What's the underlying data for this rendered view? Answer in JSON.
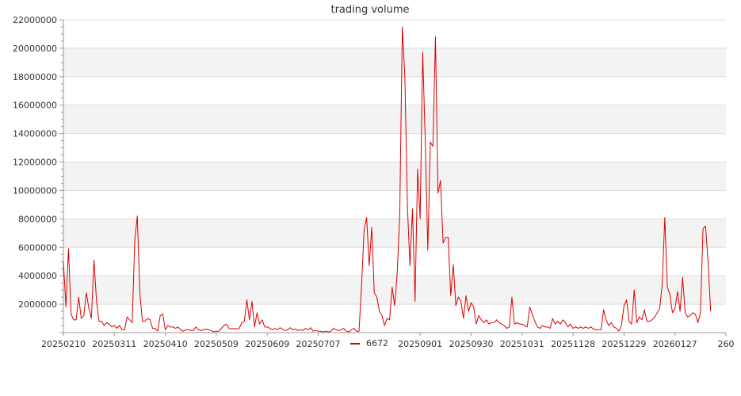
{
  "chart_data": {
    "type": "line",
    "title": "trading volume",
    "xlabel": "",
    "ylabel": "",
    "ylim": [
      0,
      22000000
    ],
    "y_ticks": [
      2000000,
      4000000,
      6000000,
      8000000,
      10000000,
      12000000,
      14000000,
      16000000,
      18000000,
      20000000,
      22000000
    ],
    "y_tick_labels": [
      "2000000",
      "4000000",
      "6000000",
      "8000000",
      "10000000",
      "12000000",
      "14000000",
      "16000000",
      "18000000",
      "20000000",
      "22000000"
    ],
    "x_tick_labels": [
      {
        "text": "20250210",
        "index": 0
      },
      {
        "text": "20250311",
        "index": 20
      },
      {
        "text": "20250410",
        "index": 40
      },
      {
        "text": "20250509",
        "index": 60
      },
      {
        "text": "20250609",
        "index": 80
      },
      {
        "text": "20250707",
        "index": 100
      },
      {
        "text": "20250901",
        "index": 140
      },
      {
        "text": "20250930",
        "index": 160
      },
      {
        "text": "20251031",
        "index": 180
      },
      {
        "text": "20251128",
        "index": 200
      },
      {
        "text": "20251229",
        "index": 220
      },
      {
        "text": "20260127",
        "index": 240
      },
      {
        "text": "260",
        "index": 260
      }
    ],
    "x_range": [
      0,
      260
    ],
    "grid": true,
    "legend_position": "bottom",
    "series": [
      {
        "name": "6672",
        "color": "#dd0000",
        "values": [
          5000000,
          1800000,
          5900000,
          1300000,
          900000,
          900000,
          2500000,
          1000000,
          1200000,
          2800000,
          1700000,
          1000000,
          5100000,
          2200000,
          800000,
          800000,
          500000,
          700000,
          600000,
          400000,
          500000,
          300000,
          500000,
          200000,
          200000,
          1100000,
          900000,
          700000,
          6500000,
          8200000,
          2800000,
          800000,
          800000,
          1000000,
          900000,
          300000,
          300000,
          100000,
          1200000,
          1300000,
          200000,
          500000,
          400000,
          400000,
          300000,
          400000,
          200000,
          100000,
          200000,
          200000,
          150000,
          150000,
          400000,
          200000,
          150000,
          200000,
          250000,
          200000,
          150000,
          50000,
          100000,
          100000,
          300000,
          500000,
          600000,
          300000,
          250000,
          300000,
          250000,
          300000,
          700000,
          800000,
          2300000,
          900000,
          2200000,
          400000,
          1400000,
          600000,
          900000,
          400000,
          400000,
          300000,
          200000,
          300000,
          200000,
          350000,
          250000,
          150000,
          200000,
          350000,
          200000,
          250000,
          150000,
          200000,
          150000,
          300000,
          200000,
          350000,
          100000,
          150000,
          100000,
          100000,
          50000,
          100000,
          50000,
          100000,
          300000,
          200000,
          150000,
          200000,
          300000,
          100000,
          50000,
          200000,
          300000,
          100000,
          100000,
          3300000,
          7200000,
          8100000,
          4700000,
          7400000,
          2800000,
          2500000,
          1500000,
          1200000,
          500000,
          1000000,
          900000,
          3200000,
          1900000,
          4200000,
          8400000,
          21500000,
          18000000,
          8900000,
          4700000,
          8700000,
          2200000,
          11500000,
          8000000,
          19700000,
          13500000,
          5800000,
          13400000,
          13100000,
          20800000,
          9800000,
          10700000,
          6300000,
          6700000,
          6700000,
          2600000,
          4800000,
          1900000,
          2500000,
          2200000,
          1000000,
          2600000,
          1500000,
          2100000,
          1800000,
          600000,
          1200000,
          900000,
          700000,
          900000,
          600000,
          700000,
          700000,
          900000,
          700000,
          600000,
          500000,
          300000,
          400000,
          2500000,
          600000,
          700000,
          600000,
          600000,
          500000,
          400000,
          1800000,
          1300000,
          800000,
          400000,
          300000,
          500000,
          400000,
          400000,
          300000,
          1000000,
          600000,
          800000,
          600000,
          900000,
          700000,
          400000,
          600000,
          300000,
          400000,
          300000,
          400000,
          300000,
          400000,
          300000,
          400000,
          250000,
          200000,
          200000,
          200000,
          1600000,
          900000,
          500000,
          700000,
          400000,
          300000,
          100000,
          500000,
          1900000,
          2300000,
          800000,
          600000,
          3000000,
          700000,
          1100000,
          900000,
          1600000,
          800000,
          800000,
          900000,
          1100000,
          1400000,
          1700000,
          3400000,
          8100000,
          3200000,
          2700000,
          1400000,
          1700000,
          2900000,
          1500000,
          3900000,
          1400000,
          1100000,
          1200000,
          1400000,
          1300000,
          700000,
          1400000,
          7300000,
          7500000,
          5000000,
          1500000
        ]
      }
    ]
  }
}
